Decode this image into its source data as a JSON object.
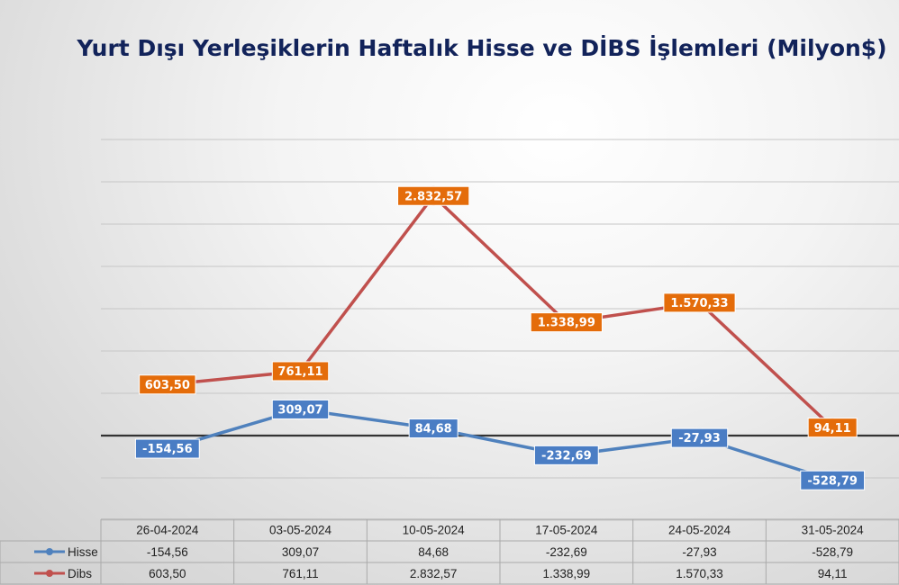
{
  "chart_data": {
    "type": "line",
    "title": "Yurt Dışı Yerleşiklerin Haftalık Hisse ve DİBS İşlemleri (Milyon$)",
    "categories": [
      "26-04-2024",
      "03-05-2024",
      "10-05-2024",
      "17-05-2024",
      "24-05-2024",
      "31-05-2024"
    ],
    "series": [
      {
        "name": "Hisse",
        "color": "#4f81bd",
        "label_color": "#4a7dc4",
        "values": [
          -154.56,
          309.07,
          84.68,
          -232.69,
          -27.93,
          -528.79
        ],
        "labels": [
          "-154,56",
          "309,07",
          "84,68",
          "-232,69",
          "-27,93",
          "-528,79"
        ]
      },
      {
        "name": "Dibs",
        "color": "#c0504d",
        "label_color": "#e46c0a",
        "values": [
          603.5,
          761.11,
          2832.57,
          1338.99,
          1570.33,
          94.11
        ],
        "labels": [
          "603,50",
          "761,11",
          "2.832,57",
          "1.338,99",
          "1.570,33",
          "94,11"
        ]
      }
    ],
    "ylim": [
      -1000,
      3500
    ],
    "grid": true,
    "zero_line_color": "#333333",
    "data_table": true
  }
}
